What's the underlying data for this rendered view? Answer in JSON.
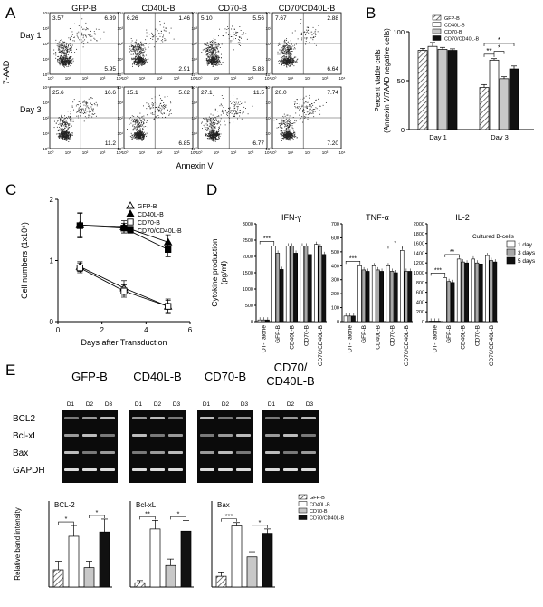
{
  "panels": {
    "A": {
      "letter": "A",
      "columns": [
        "GFP-B",
        "CD40L-B",
        "CD70-B",
        "CD70/CD40L-B"
      ],
      "rows": [
        "Day 1",
        "Day 3"
      ],
      "xlabel": "Annexin V",
      "ylabel": "7-AAD",
      "plots": [
        [
          {
            "tl": "3.57",
            "tr": "6.39",
            "br": "5.95"
          },
          {
            "tl": "6.26",
            "tr": "1.46",
            "br": "2.91"
          },
          {
            "tl": "5.10",
            "tr": "5.56",
            "br": "5.83"
          },
          {
            "tl": "7.67",
            "tr": "2.88",
            "br": "6.64"
          }
        ],
        [
          {
            "tl": "25.6",
            "tr": "16.6",
            "br": "11.2"
          },
          {
            "tl": "15.1",
            "tr": "5.62",
            "br": "6.85"
          },
          {
            "tl": "27.1",
            "tr": "11.5",
            "br": "6.77"
          },
          {
            "tl": "20.0",
            "tr": "7.74",
            "br": "7.20"
          }
        ]
      ],
      "ticks": [
        "10⁰",
        "10¹",
        "10²",
        "10³",
        "10⁴"
      ]
    },
    "B": {
      "letter": "B"
    },
    "C": {
      "letter": "C"
    },
    "D": {
      "letter": "D"
    },
    "E": {
      "letter": "E",
      "gel_titles": [
        "GFP-B",
        "CD40L-B",
        "CD70-B",
        "CD70/\nCD40L-B"
      ],
      "lanes": [
        "D1",
        "D2",
        "D3"
      ],
      "genes": [
        "BCL2",
        "Bcl-xL",
        "Bax",
        "GAPDH"
      ]
    }
  },
  "chart_data": [
    {
      "id": "B",
      "type": "bar",
      "categories": [
        "Day 1",
        "Day 3"
      ],
      "series": [
        {
          "name": "GFP-B",
          "values": [
            81,
            43
          ],
          "err": [
            2,
            3
          ]
        },
        {
          "name": "CD40L-B",
          "values": [
            85,
            71
          ],
          "err": [
            4,
            1.5
          ]
        },
        {
          "name": "CD70-B",
          "values": [
            82,
            52
          ],
          "err": [
            2,
            2
          ]
        },
        {
          "name": "CD70/CD40L-B",
          "values": [
            81,
            62
          ],
          "err": [
            1.5,
            3
          ]
        }
      ],
      "ylabel": "Percent viable cells\n(Annexin V/7AAD negative cells)",
      "ylim": [
        0,
        100
      ],
      "yticks": [
        0,
        50,
        100
      ],
      "sig": [
        {
          "x1": 0,
          "x2": 1,
          "label": "**"
        },
        {
          "x1": 1,
          "x2": 2,
          "label": "*"
        },
        {
          "x1": 0,
          "x2": 3,
          "label": "*"
        }
      ]
    },
    {
      "id": "C",
      "type": "line",
      "x": [
        1,
        3,
        5
      ],
      "series": [
        {
          "name": "GFP-B",
          "marker": "triangle-open",
          "values": [
            0.9,
            0.55,
            0.25
          ],
          "err": [
            0.08,
            0.12,
            0.12
          ]
        },
        {
          "name": "CD40L-B",
          "marker": "triangle-filled",
          "values": [
            1.58,
            1.55,
            1.3
          ],
          "err": [
            0.2,
            0.1,
            0.12
          ]
        },
        {
          "name": "CD70-B",
          "marker": "square-open",
          "values": [
            0.88,
            0.5,
            0.25
          ],
          "err": [
            0.08,
            0.1,
            0.1
          ]
        },
        {
          "name": "CD70/CD40L-B",
          "marker": "square-filled",
          "values": [
            1.57,
            1.53,
            1.18
          ],
          "err": [
            0.2,
            0.08,
            0.12
          ]
        }
      ],
      "xlabel": "Days after Transduction",
      "ylabel": "Cell numbers (1x10⁶)",
      "xlim": [
        0,
        6
      ],
      "xticks": [
        0,
        2,
        4,
        6
      ],
      "ylim": [
        0,
        2
      ],
      "yticks": [
        0,
        1,
        2
      ]
    },
    {
      "id": "D",
      "type": "bar",
      "ylabel": "Cytokine production\n(pg/ml)",
      "categories": [
        "OT-I alone",
        "GFP-B",
        "CD40L-B",
        "CD70-B",
        "CD70/CD40L-B"
      ],
      "legend_title": "Cultured  B-cells",
      "legend": [
        "1 day",
        "3 days",
        "5 days"
      ],
      "subplots": [
        {
          "title": "IFN-γ",
          "ylim": [
            0,
            3000
          ],
          "yticks": [
            0,
            500,
            1000,
            1500,
            2000,
            2500,
            3000
          ],
          "values": [
            [
              50,
              50,
              50
            ],
            [
              2320,
              2100,
              1600
            ],
            [
              2320,
              2320,
              2100
            ],
            [
              2320,
              2320,
              2060
            ],
            [
              2370,
              2300,
              2060
            ]
          ],
          "sig": [
            {
              "x1": 0,
              "x2": 1,
              "label": "***"
            }
          ]
        },
        {
          "title": "TNF-α",
          "ylim": [
            0,
            700
          ],
          "yticks": [
            0,
            100,
            200,
            300,
            400,
            500,
            600,
            700
          ],
          "values": [
            [
              40,
              40,
              40
            ],
            [
              400,
              370,
              360
            ],
            [
              400,
              370,
              360
            ],
            [
              400,
              360,
              350
            ],
            [
              510,
              360,
              360
            ]
          ],
          "sig": [
            {
              "x1": 0,
              "x2": 1,
              "label": "***"
            },
            {
              "x1": 3,
              "x2": 4,
              "label": "*"
            }
          ]
        },
        {
          "title": "IL-2",
          "ylim": [
            0,
            2000
          ],
          "yticks": [
            0,
            200,
            400,
            600,
            800,
            1000,
            1200,
            1400,
            1600,
            1800,
            2000
          ],
          "values": [
            [
              10,
              10,
              10
            ],
            [
              900,
              820,
              800
            ],
            [
              1280,
              1220,
              1200
            ],
            [
              1280,
              1200,
              1180
            ],
            [
              1350,
              1250,
              1220
            ]
          ],
          "sig": [
            {
              "x1": 0,
              "x2": 1,
              "label": "***"
            },
            {
              "x1": 1,
              "x2": 2,
              "label": "**"
            }
          ]
        }
      ]
    },
    {
      "id": "E-bars",
      "type": "bar",
      "ylabel": "Relative band intensity",
      "legend": [
        "GFP-B",
        "CD40L-B",
        "CD70-B",
        "CD70/CD40L-B"
      ],
      "ylim": [
        0,
        2
      ],
      "subplots": [
        {
          "title": "BCL-2",
          "values": [
            0.4,
            1.18,
            0.45,
            1.28
          ],
          "err": [
            0.2,
            0.25,
            0.15,
            0.3
          ],
          "sig": [
            {
              "x1": 0,
              "x2": 1,
              "label": "*"
            },
            {
              "x1": 2,
              "x2": 3,
              "label": "*"
            }
          ]
        },
        {
          "title": "Bcl-xL",
          "values": [
            0.1,
            1.35,
            0.5,
            1.3
          ],
          "err": [
            0.05,
            0.2,
            0.15,
            0.25
          ],
          "sig": [
            {
              "x1": 0,
              "x2": 1,
              "label": "**"
            },
            {
              "x1": 2,
              "x2": 3,
              "label": "*"
            }
          ]
        },
        {
          "title": "Bax",
          "values": [
            0.25,
            1.42,
            0.7,
            1.25
          ],
          "err": [
            0.1,
            0.08,
            0.12,
            0.1
          ],
          "sig": [
            {
              "x1": 0,
              "x2": 1,
              "label": "***"
            },
            {
              "x1": 2,
              "x2": 3,
              "label": "*"
            }
          ]
        }
      ]
    }
  ]
}
